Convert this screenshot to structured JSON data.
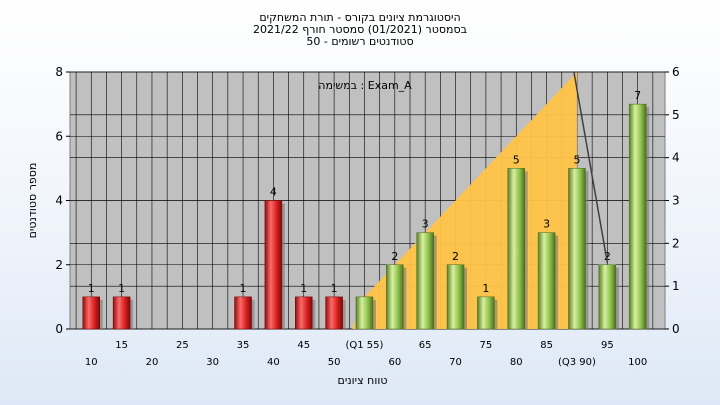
{
  "title_lines": [
    "היסטוגרמת ציונים בקורס - תורת המשחקים",
    "בסמסטר  (01/2021)  סמסטר חורף 2021/22",
    "סטודנטים רשומים - 50"
  ],
  "chart_data": {
    "type": "bar",
    "annotation": "במשימה : Exam_A",
    "xlabel": "טווח ציונים",
    "ylabel": "מספר סטודנטים",
    "ylim_left": [
      0,
      8
    ],
    "ylim_right": [
      0,
      6
    ],
    "yticks_left": [
      0,
      2,
      4,
      6,
      8
    ],
    "yticks_right": [
      0,
      1,
      2,
      3,
      4,
      5,
      6
    ],
    "grid": true,
    "categories": [
      10,
      15,
      20,
      25,
      30,
      35,
      40,
      45,
      50,
      55,
      60,
      65,
      70,
      75,
      80,
      85,
      90,
      95,
      100
    ],
    "x_tick_labels": [
      "10",
      "15",
      "20",
      "25",
      "30",
      "35",
      "40",
      "45",
      "50",
      "(Q1 55)",
      "60",
      "65",
      "70",
      "75",
      "80",
      "85",
      "(Q3 90)",
      "95",
      "100"
    ],
    "values": [
      1,
      1,
      0,
      0,
      0,
      1,
      4,
      1,
      1,
      1,
      2,
      3,
      2,
      1,
      5,
      3,
      5,
      2,
      7
    ],
    "data_labels": [
      "1",
      "1",
      "",
      "",
      "",
      "1",
      "4",
      "1",
      "1",
      "",
      "2",
      "3",
      "2",
      "1",
      "5",
      "3",
      "5",
      "2",
      "7"
    ],
    "colors": {
      "below_threshold": "#e02828",
      "above_threshold": "#8cc04a",
      "band": "#ffc446",
      "plot_bg": "#c0c0c0",
      "line": "#404040"
    },
    "red_categories": [
      10,
      15,
      20,
      25,
      30,
      35,
      40,
      45,
      50
    ],
    "band_polygon": [
      [
        53,
        0
      ],
      [
        55,
        0.75
      ],
      [
        60,
        1.5
      ],
      [
        65,
        2.25
      ],
      [
        70,
        3.0
      ],
      [
        75,
        3.75
      ],
      [
        80,
        4.5
      ],
      [
        85,
        5.25
      ],
      [
        90,
        6.0
      ],
      [
        90,
        0
      ],
      [
        53,
        0
      ]
    ],
    "overlay_line": [
      [
        89.5,
        6.0
      ],
      [
        95,
        1.55
      ]
    ]
  }
}
